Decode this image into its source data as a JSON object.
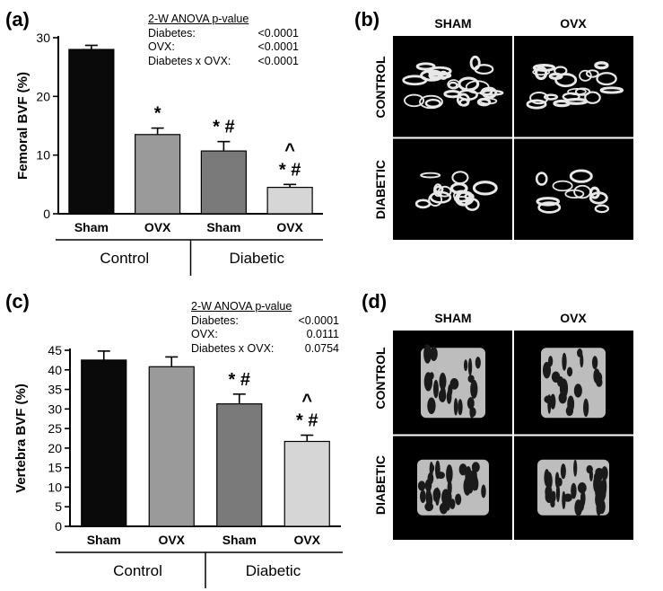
{
  "panel_a": {
    "label": "(a)",
    "stats": {
      "header": "2-W ANOVA p-value",
      "rows": [
        {
          "name": "Diabetes:",
          "value": "<0.0001"
        },
        {
          "name": "OVX:",
          "value": "<0.0001"
        },
        {
          "name": "Diabetes x OVX:",
          "value": "<0.0001"
        }
      ]
    }
  },
  "panel_b": {
    "label": "(b)",
    "columns": [
      "SHAM",
      "OVX"
    ],
    "rows": [
      "CONTROL",
      "DIABETIC"
    ]
  },
  "panel_c": {
    "label": "(c)",
    "stats": {
      "header": "2-W ANOVA p-value",
      "rows": [
        {
          "name": "Diabetes:",
          "value": "<0.0001"
        },
        {
          "name": "OVX:",
          "value": "0.0111"
        },
        {
          "name": "Diabetes x OVX:",
          "value": "0.0754"
        }
      ]
    }
  },
  "panel_d": {
    "label": "(d)",
    "columns": [
      "SHAM",
      "OVX"
    ],
    "rows": [
      "CONTROL",
      "DIABETIC"
    ]
  },
  "colors": {
    "bar_sham_control": "#0a0a0a",
    "bar_ovx_control": "#9a9a9a",
    "bar_sham_diabetic": "#7a7a7a",
    "bar_ovx_diabetic": "#d6d6d6",
    "image_bg": "#000000"
  },
  "chart_data": [
    {
      "type": "bar",
      "ylabel": "Femoral BVF  (%)",
      "ylim": [
        0,
        30
      ],
      "yticks": [
        0,
        10,
        20,
        30
      ],
      "categories": [
        "Sham",
        "OVX",
        "Sham",
        "OVX"
      ],
      "groups": [
        "Control",
        "Diabetic"
      ],
      "values": [
        28.0,
        13.5,
        10.7,
        4.5
      ],
      "errors": [
        0.7,
        1.1,
        1.6,
        0.5
      ],
      "annotations": [
        [],
        [
          "*"
        ],
        [
          "* #"
        ],
        [
          "^",
          "* #"
        ]
      ]
    },
    {
      "type": "bar",
      "ylabel": "Vertebra BVF  (%)",
      "ylim": [
        0,
        45
      ],
      "yticks": [
        0,
        5,
        10,
        15,
        20,
        25,
        30,
        35,
        40,
        45
      ],
      "categories": [
        "Sham",
        "OVX",
        "Sham",
        "OVX"
      ],
      "groups": [
        "Control",
        "Diabetic"
      ],
      "values": [
        42.5,
        40.8,
        31.3,
        21.7
      ],
      "errors": [
        2.3,
        2.5,
        2.5,
        1.6
      ],
      "annotations": [
        [],
        [],
        [
          "* #"
        ],
        [
          "^",
          "* #"
        ]
      ]
    }
  ]
}
